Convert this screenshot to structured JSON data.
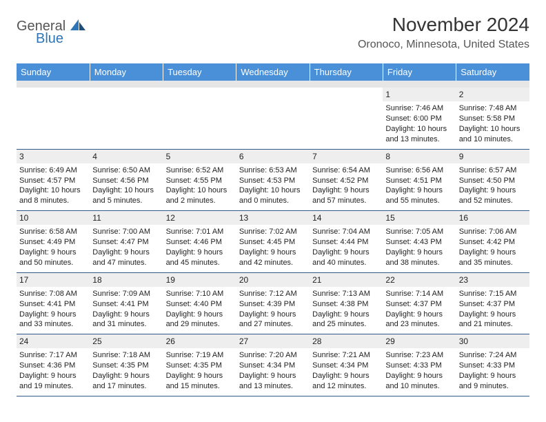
{
  "logo": {
    "general": "General",
    "blue": "Blue"
  },
  "header": {
    "month": "November 2024",
    "location": "Oronoco, Minnesota, United States"
  },
  "dayNames": [
    "Sunday",
    "Monday",
    "Tuesday",
    "Wednesday",
    "Thursday",
    "Friday",
    "Saturday"
  ],
  "colors": {
    "headerBg": "#4a90d9",
    "spacerBg": "#e6e6e6",
    "dayNumBg": "#eeeeee",
    "rowBorder": "#2e5a8a",
    "logoBlue": "#2e75b6",
    "text": "#222222"
  },
  "weeks": [
    [
      null,
      null,
      null,
      null,
      null,
      {
        "n": "1",
        "sr": "Sunrise: 7:46 AM",
        "ss": "Sunset: 6:00 PM",
        "d1": "Daylight: 10 hours",
        "d2": "and 13 minutes."
      },
      {
        "n": "2",
        "sr": "Sunrise: 7:48 AM",
        "ss": "Sunset: 5:58 PM",
        "d1": "Daylight: 10 hours",
        "d2": "and 10 minutes."
      }
    ],
    [
      {
        "n": "3",
        "sr": "Sunrise: 6:49 AM",
        "ss": "Sunset: 4:57 PM",
        "d1": "Daylight: 10 hours",
        "d2": "and 8 minutes."
      },
      {
        "n": "4",
        "sr": "Sunrise: 6:50 AM",
        "ss": "Sunset: 4:56 PM",
        "d1": "Daylight: 10 hours",
        "d2": "and 5 minutes."
      },
      {
        "n": "5",
        "sr": "Sunrise: 6:52 AM",
        "ss": "Sunset: 4:55 PM",
        "d1": "Daylight: 10 hours",
        "d2": "and 2 minutes."
      },
      {
        "n": "6",
        "sr": "Sunrise: 6:53 AM",
        "ss": "Sunset: 4:53 PM",
        "d1": "Daylight: 10 hours",
        "d2": "and 0 minutes."
      },
      {
        "n": "7",
        "sr": "Sunrise: 6:54 AM",
        "ss": "Sunset: 4:52 PM",
        "d1": "Daylight: 9 hours",
        "d2": "and 57 minutes."
      },
      {
        "n": "8",
        "sr": "Sunrise: 6:56 AM",
        "ss": "Sunset: 4:51 PM",
        "d1": "Daylight: 9 hours",
        "d2": "and 55 minutes."
      },
      {
        "n": "9",
        "sr": "Sunrise: 6:57 AM",
        "ss": "Sunset: 4:50 PM",
        "d1": "Daylight: 9 hours",
        "d2": "and 52 minutes."
      }
    ],
    [
      {
        "n": "10",
        "sr": "Sunrise: 6:58 AM",
        "ss": "Sunset: 4:49 PM",
        "d1": "Daylight: 9 hours",
        "d2": "and 50 minutes."
      },
      {
        "n": "11",
        "sr": "Sunrise: 7:00 AM",
        "ss": "Sunset: 4:47 PM",
        "d1": "Daylight: 9 hours",
        "d2": "and 47 minutes."
      },
      {
        "n": "12",
        "sr": "Sunrise: 7:01 AM",
        "ss": "Sunset: 4:46 PM",
        "d1": "Daylight: 9 hours",
        "d2": "and 45 minutes."
      },
      {
        "n": "13",
        "sr": "Sunrise: 7:02 AM",
        "ss": "Sunset: 4:45 PM",
        "d1": "Daylight: 9 hours",
        "d2": "and 42 minutes."
      },
      {
        "n": "14",
        "sr": "Sunrise: 7:04 AM",
        "ss": "Sunset: 4:44 PM",
        "d1": "Daylight: 9 hours",
        "d2": "and 40 minutes."
      },
      {
        "n": "15",
        "sr": "Sunrise: 7:05 AM",
        "ss": "Sunset: 4:43 PM",
        "d1": "Daylight: 9 hours",
        "d2": "and 38 minutes."
      },
      {
        "n": "16",
        "sr": "Sunrise: 7:06 AM",
        "ss": "Sunset: 4:42 PM",
        "d1": "Daylight: 9 hours",
        "d2": "and 35 minutes."
      }
    ],
    [
      {
        "n": "17",
        "sr": "Sunrise: 7:08 AM",
        "ss": "Sunset: 4:41 PM",
        "d1": "Daylight: 9 hours",
        "d2": "and 33 minutes."
      },
      {
        "n": "18",
        "sr": "Sunrise: 7:09 AM",
        "ss": "Sunset: 4:41 PM",
        "d1": "Daylight: 9 hours",
        "d2": "and 31 minutes."
      },
      {
        "n": "19",
        "sr": "Sunrise: 7:10 AM",
        "ss": "Sunset: 4:40 PM",
        "d1": "Daylight: 9 hours",
        "d2": "and 29 minutes."
      },
      {
        "n": "20",
        "sr": "Sunrise: 7:12 AM",
        "ss": "Sunset: 4:39 PM",
        "d1": "Daylight: 9 hours",
        "d2": "and 27 minutes."
      },
      {
        "n": "21",
        "sr": "Sunrise: 7:13 AM",
        "ss": "Sunset: 4:38 PM",
        "d1": "Daylight: 9 hours",
        "d2": "and 25 minutes."
      },
      {
        "n": "22",
        "sr": "Sunrise: 7:14 AM",
        "ss": "Sunset: 4:37 PM",
        "d1": "Daylight: 9 hours",
        "d2": "and 23 minutes."
      },
      {
        "n": "23",
        "sr": "Sunrise: 7:15 AM",
        "ss": "Sunset: 4:37 PM",
        "d1": "Daylight: 9 hours",
        "d2": "and 21 minutes."
      }
    ],
    [
      {
        "n": "24",
        "sr": "Sunrise: 7:17 AM",
        "ss": "Sunset: 4:36 PM",
        "d1": "Daylight: 9 hours",
        "d2": "and 19 minutes."
      },
      {
        "n": "25",
        "sr": "Sunrise: 7:18 AM",
        "ss": "Sunset: 4:35 PM",
        "d1": "Daylight: 9 hours",
        "d2": "and 17 minutes."
      },
      {
        "n": "26",
        "sr": "Sunrise: 7:19 AM",
        "ss": "Sunset: 4:35 PM",
        "d1": "Daylight: 9 hours",
        "d2": "and 15 minutes."
      },
      {
        "n": "27",
        "sr": "Sunrise: 7:20 AM",
        "ss": "Sunset: 4:34 PM",
        "d1": "Daylight: 9 hours",
        "d2": "and 13 minutes."
      },
      {
        "n": "28",
        "sr": "Sunrise: 7:21 AM",
        "ss": "Sunset: 4:34 PM",
        "d1": "Daylight: 9 hours",
        "d2": "and 12 minutes."
      },
      {
        "n": "29",
        "sr": "Sunrise: 7:23 AM",
        "ss": "Sunset: 4:33 PM",
        "d1": "Daylight: 9 hours",
        "d2": "and 10 minutes."
      },
      {
        "n": "30",
        "sr": "Sunrise: 7:24 AM",
        "ss": "Sunset: 4:33 PM",
        "d1": "Daylight: 9 hours",
        "d2": "and 9 minutes."
      }
    ]
  ]
}
